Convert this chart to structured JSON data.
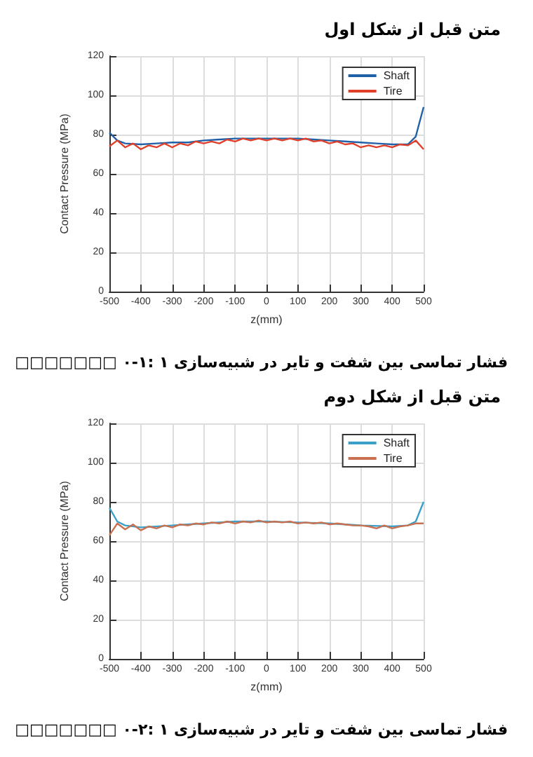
{
  "chart_data": [
    {
      "type": "line",
      "title": "متن قبل از شکل اول",
      "xlabel": "z(mm)",
      "ylabel": "Contact Pressure (MPa)",
      "annotations": [
        "□□□□□□□ ۰-۱: فشار تماسی بین شفت و تایر در شبیه‌سازی ۱"
      ],
      "xlim": [
        -500,
        500
      ],
      "xticks": [
        -500,
        -400,
        -300,
        -200,
        -100,
        0,
        100,
        200,
        300,
        400,
        500
      ],
      "ylim": [
        0,
        120
      ],
      "yticks": [
        0,
        20,
        40,
        60,
        80,
        100,
        120
      ],
      "grid": true,
      "legend": "top right",
      "marker": "none",
      "line_style": "solid",
      "series": [
        {
          "name": "Shaft",
          "color": "#2060a8",
          "x": [
            -500,
            -475,
            -450,
            -400,
            -350,
            -300,
            -250,
            -200,
            -150,
            -100,
            -50,
            0,
            50,
            100,
            150,
            200,
            250,
            300,
            350,
            400,
            450,
            475,
            500
          ],
          "values": [
            81,
            77,
            75.5,
            75,
            75.5,
            76,
            76,
            77,
            77.5,
            78,
            78,
            78,
            78,
            78,
            77.5,
            77,
            76.5,
            76,
            75.5,
            75,
            75,
            79,
            94
          ]
        },
        {
          "name": "Tire",
          "color": "#e0402a",
          "x": [
            -500,
            -475,
            -450,
            -425,
            -400,
            -375,
            -350,
            -325,
            -300,
            -275,
            -250,
            -225,
            -200,
            -175,
            -150,
            -125,
            -100,
            -75,
            -50,
            -25,
            0,
            25,
            50,
            75,
            100,
            125,
            150,
            175,
            200,
            225,
            250,
            275,
            300,
            325,
            350,
            375,
            400,
            425,
            450,
            475,
            500
          ],
          "values": [
            74,
            77,
            73.5,
            75.5,
            72.5,
            74.5,
            73.5,
            75.5,
            73.5,
            75.5,
            74.5,
            76.5,
            75.5,
            76.5,
            75.5,
            77.5,
            76.5,
            78,
            77,
            78,
            77,
            78,
            77,
            78,
            77,
            78,
            76.5,
            77,
            75.5,
            76.5,
            75,
            75.5,
            73.5,
            74.5,
            73.5,
            74.5,
            73.5,
            75,
            74.5,
            77,
            72.5
          ]
        }
      ]
    },
    {
      "type": "line",
      "title": "متن قبل از شکل دوم",
      "xlabel": "z(mm)",
      "ylabel": "Contact Pressure (MPa)",
      "annotations": [
        "□□□□□□□ ۰-۲: فشار تماسی بین شفت و تایر در شبیه‌سازی ۱"
      ],
      "xlim": [
        -500,
        500
      ],
      "xticks": [
        -500,
        -400,
        -300,
        -200,
        -100,
        0,
        100,
        200,
        300,
        400,
        500
      ],
      "ylim": [
        0,
        120
      ],
      "yticks": [
        0,
        20,
        40,
        60,
        80,
        100,
        120
      ],
      "grid": true,
      "legend": "top right",
      "marker": "none",
      "line_style": "solid",
      "series": [
        {
          "name": "Shaft",
          "color": "#3aa0c8",
          "x": [
            -500,
            -475,
            -450,
            -400,
            -300,
            -200,
            -100,
            0,
            100,
            200,
            300,
            400,
            450,
            475,
            500
          ],
          "values": [
            77,
            70,
            68,
            67,
            68,
            69,
            70,
            70,
            69.5,
            69,
            68,
            67.5,
            68,
            70,
            80
          ]
        },
        {
          "name": "Tire",
          "color": "#c87050",
          "x": [
            -500,
            -475,
            -450,
            -425,
            -400,
            -375,
            -350,
            -325,
            -300,
            -275,
            -250,
            -225,
            -200,
            -175,
            -150,
            -125,
            -100,
            -75,
            -50,
            -25,
            0,
            25,
            50,
            75,
            100,
            125,
            150,
            175,
            200,
            225,
            250,
            275,
            300,
            325,
            350,
            375,
            400,
            425,
            450,
            475,
            500
          ],
          "values": [
            63,
            69,
            66,
            68.5,
            65.5,
            67.5,
            66.5,
            68,
            67,
            68.5,
            68,
            69,
            68.5,
            69.5,
            69,
            70,
            69,
            70,
            69.5,
            70.5,
            69.5,
            70,
            69.5,
            70,
            69,
            69.5,
            69,
            69.5,
            68.5,
            69,
            68.5,
            68,
            68,
            67.5,
            66.5,
            68,
            66.5,
            67.5,
            68,
            69,
            69
          ]
        }
      ]
    }
  ]
}
